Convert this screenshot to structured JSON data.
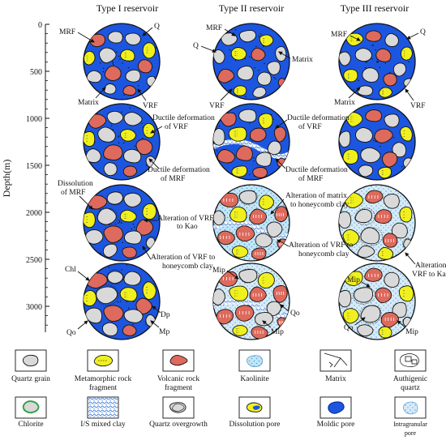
{
  "columns": [
    "Type I reservoir",
    "Type II reservoir",
    "Type III reservoir"
  ],
  "axis": {
    "label": "Depth(m)",
    "ticks": [
      "0",
      "500",
      "1000",
      "1500",
      "2000",
      "2500",
      "3000"
    ]
  },
  "annotations": {
    "c1_mrf": "MRF",
    "c1_q": "Q",
    "c1_matrix": "Matrix",
    "c1_vrf": "VRF",
    "c1_ductile_vrf_1": "Ductile deformation",
    "c1_ductile_vrf_2": "of VRF",
    "c1_ductile_mrf_1": "Ductile deformation",
    "c1_ductile_mrf_2": "of MRF",
    "c1_dissolution_1": "Dissolution",
    "c1_dissolution_2": "of MRF",
    "c1_alt_kao_1": "Alteration of VRF",
    "c1_alt_kao_2": "to Kao",
    "c1_alt_hc_1": "Alteration of VRF to",
    "c1_alt_hc_2": "honeycomb clay",
    "c1_chl": "Chl",
    "c1_dp": "Dp",
    "c1_qo": "Qo",
    "c1_mp": "Mp",
    "c2_mrf": "MRF",
    "c2_q": "Q",
    "c2_matrix": "Matrix",
    "c2_vrf": "VRF",
    "c2_ductile_vrf_1": "Ductile deformation",
    "c2_ductile_vrf_2": "of VRF",
    "c2_ductile_mrf_1": "Ductile deformation",
    "c2_ductile_mrf_2": "of MRF",
    "c2_alt_matrix_1": "Alteration of  matrix",
    "c2_alt_matrix_2": "to honeycomb clay",
    "c2_alt_vrf_1": "Alteration of  VRF to",
    "c2_alt_vrf_2": "honeycomb clay",
    "c2_mip_a": "Mip",
    "c2_qo": "Qo",
    "c2_mip_b": "Mip",
    "c3_mrf": "MRF",
    "c3_q": "Q",
    "c3_matrix": "Matrix",
    "c3_vrf": "VRF",
    "c3_alt_1": "Alteration of",
    "c3_alt_2": "VRF to Kao",
    "c3_mip_a": "Mip",
    "c3_qo": "Qo",
    "c3_mip_b": "Mip"
  },
  "legend": [
    {
      "key": "quartz",
      "label": "Quartz grain"
    },
    {
      "key": "metamorphic",
      "label_1": "Metamorphic rock",
      "label_2": "fragment"
    },
    {
      "key": "volcanic",
      "label_1": "Volcanic rock",
      "label_2": "fragment"
    },
    {
      "key": "kaolinite",
      "label": "Kaolinite"
    },
    {
      "key": "matrix",
      "label": "Matrix"
    },
    {
      "key": "authigenic",
      "label_1": "Authigenic",
      "label_2": "quartz"
    },
    {
      "key": "chlorite",
      "label": "Chlorite"
    },
    {
      "key": "is_clay",
      "label": "I/S mixed clay"
    },
    {
      "key": "overgrowth",
      "label": "Quartz overgrowth"
    },
    {
      "key": "dissolution",
      "label": "Dissolution pore"
    },
    {
      "key": "moldic",
      "label": "Moldic pore"
    },
    {
      "key": "intragranular",
      "label_1": "Intragranular",
      "label_2": "pore"
    }
  ],
  "colors": {
    "matrix_blue": "#1c56e0",
    "quartz": "#d9d9d9",
    "metamorphic": "#f0f01e",
    "volcanic": "#dd6a5c",
    "kaolinite": "#9bd2ee",
    "pore_light": "#c6e3f2",
    "chlorite": "#3aa04a"
  }
}
